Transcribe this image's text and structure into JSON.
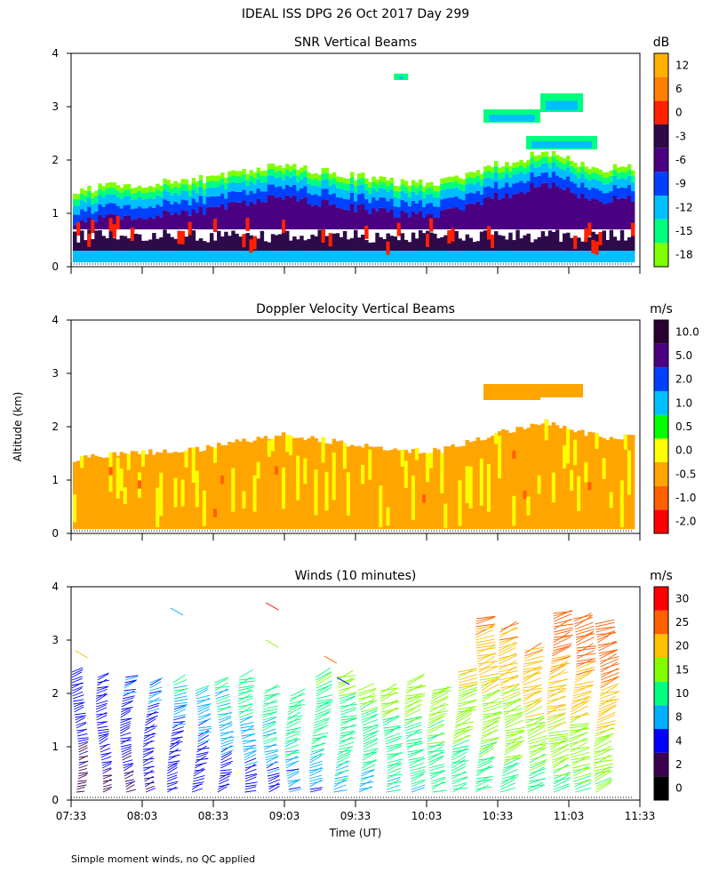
{
  "figure": {
    "title": "IDEAL ISS DPG  26 Oct 2017 Day 299",
    "ylabel": "Altitude (km)",
    "xlabel": "Time (UT)",
    "footnote": "Simple moment winds, no QC applied",
    "time_ticks": [
      "07:33",
      "08:03",
      "08:33",
      "09:03",
      "09:33",
      "10:03",
      "10:33",
      "11:03",
      "11:33"
    ]
  },
  "colors": {
    "snr_scale": [
      "#7fff00",
      "#00ff7f",
      "#00bfff",
      "#0040ff",
      "#4b0082",
      "#2e0a4a",
      "#ff2000",
      "#ff8000",
      "#ffb000"
    ],
    "velocity_scale": [
      "#ff0000",
      "#ff6000",
      "#ffa500",
      "#ffff00",
      "#00ff00",
      "#00bfff",
      "#0040ff",
      "#4b0082",
      "#2a0030"
    ],
    "wind_scale": [
      "#000000",
      "#3d0050",
      "#0000ff",
      "#00b0ff",
      "#00ff80",
      "#80ff00",
      "#ffc000",
      "#ff6000",
      "#ff0000"
    ]
  },
  "chart_data": [
    {
      "type": "heatmap",
      "title": "SNR Vertical Beams",
      "xlabel": "Time (UT)",
      "ylabel": "Altitude (km)",
      "x_range": [
        "07:33",
        "11:33"
      ],
      "ylim": [
        0,
        4
      ],
      "yticks": [
        "0",
        "1",
        "2",
        "3",
        "4"
      ],
      "colorbar_unit": "dB",
      "colorbar_labels": [
        "-18",
        "-15",
        "-12",
        "-9",
        "-6",
        "-3",
        "0",
        "6",
        "12"
      ],
      "series": [
        {
          "name": "top of detected echo (km)",
          "times": [
            7.6,
            8.0,
            8.5,
            9.0,
            9.3,
            9.8,
            10.1,
            10.4,
            10.8,
            11.2
          ],
          "values": [
            1.4,
            1.5,
            1.6,
            1.85,
            1.75,
            1.55,
            1.55,
            1.8,
            2.1,
            1.8
          ]
        }
      ]
    },
    {
      "type": "heatmap",
      "title": "Doppler Velocity Vertical Beams",
      "xlabel": "Time (UT)",
      "ylabel": "Altitude (km)",
      "x_range": [
        "07:33",
        "11:33"
      ],
      "ylim": [
        0,
        4
      ],
      "yticks": [
        "0",
        "1",
        "2",
        "3",
        "4"
      ],
      "colorbar_unit": "m/s",
      "colorbar_labels": [
        "-2.0",
        "-1.0",
        "-0.5",
        "0.0",
        "0.5",
        "1.0",
        "2.0",
        "5.0",
        "10.0"
      ],
      "series": [
        {
          "name": "dominant vertical velocity (m/s)",
          "times": [
            7.6,
            8.5,
            9.5,
            10.5,
            11.2
          ],
          "values": [
            -0.3,
            -0.3,
            -0.3,
            -0.4,
            -0.3
          ]
        }
      ]
    },
    {
      "type": "scatter",
      "title": "Winds (10 minutes)",
      "xlabel": "Time (UT)",
      "ylabel": "Altitude (km)",
      "x_range": [
        "07:33",
        "11:33"
      ],
      "ylim": [
        0,
        4
      ],
      "yticks": [
        "0",
        "1",
        "2",
        "3",
        "4"
      ],
      "colorbar_unit": "m/s",
      "colorbar_labels": [
        "0",
        "2",
        "4",
        "8",
        "10",
        "15",
        "20",
        "25",
        "30"
      ],
      "profile_times": [
        7.58,
        7.75,
        7.92,
        8.08,
        8.25,
        8.42,
        8.58,
        8.75,
        8.92,
        9.08,
        9.25,
        9.42,
        9.58,
        9.75,
        9.92,
        10.08,
        10.25,
        10.42,
        10.58,
        10.75,
        10.92,
        11.08,
        11.25
      ],
      "profile_top_km": [
        2.4,
        2.3,
        2.3,
        2.2,
        2.2,
        2.1,
        2.2,
        2.3,
        2.1,
        2.0,
        2.3,
        2.3,
        2.1,
        2.1,
        2.2,
        2.1,
        2.4,
        3.4,
        3.2,
        2.8,
        3.5,
        3.4,
        3.3
      ]
    }
  ]
}
